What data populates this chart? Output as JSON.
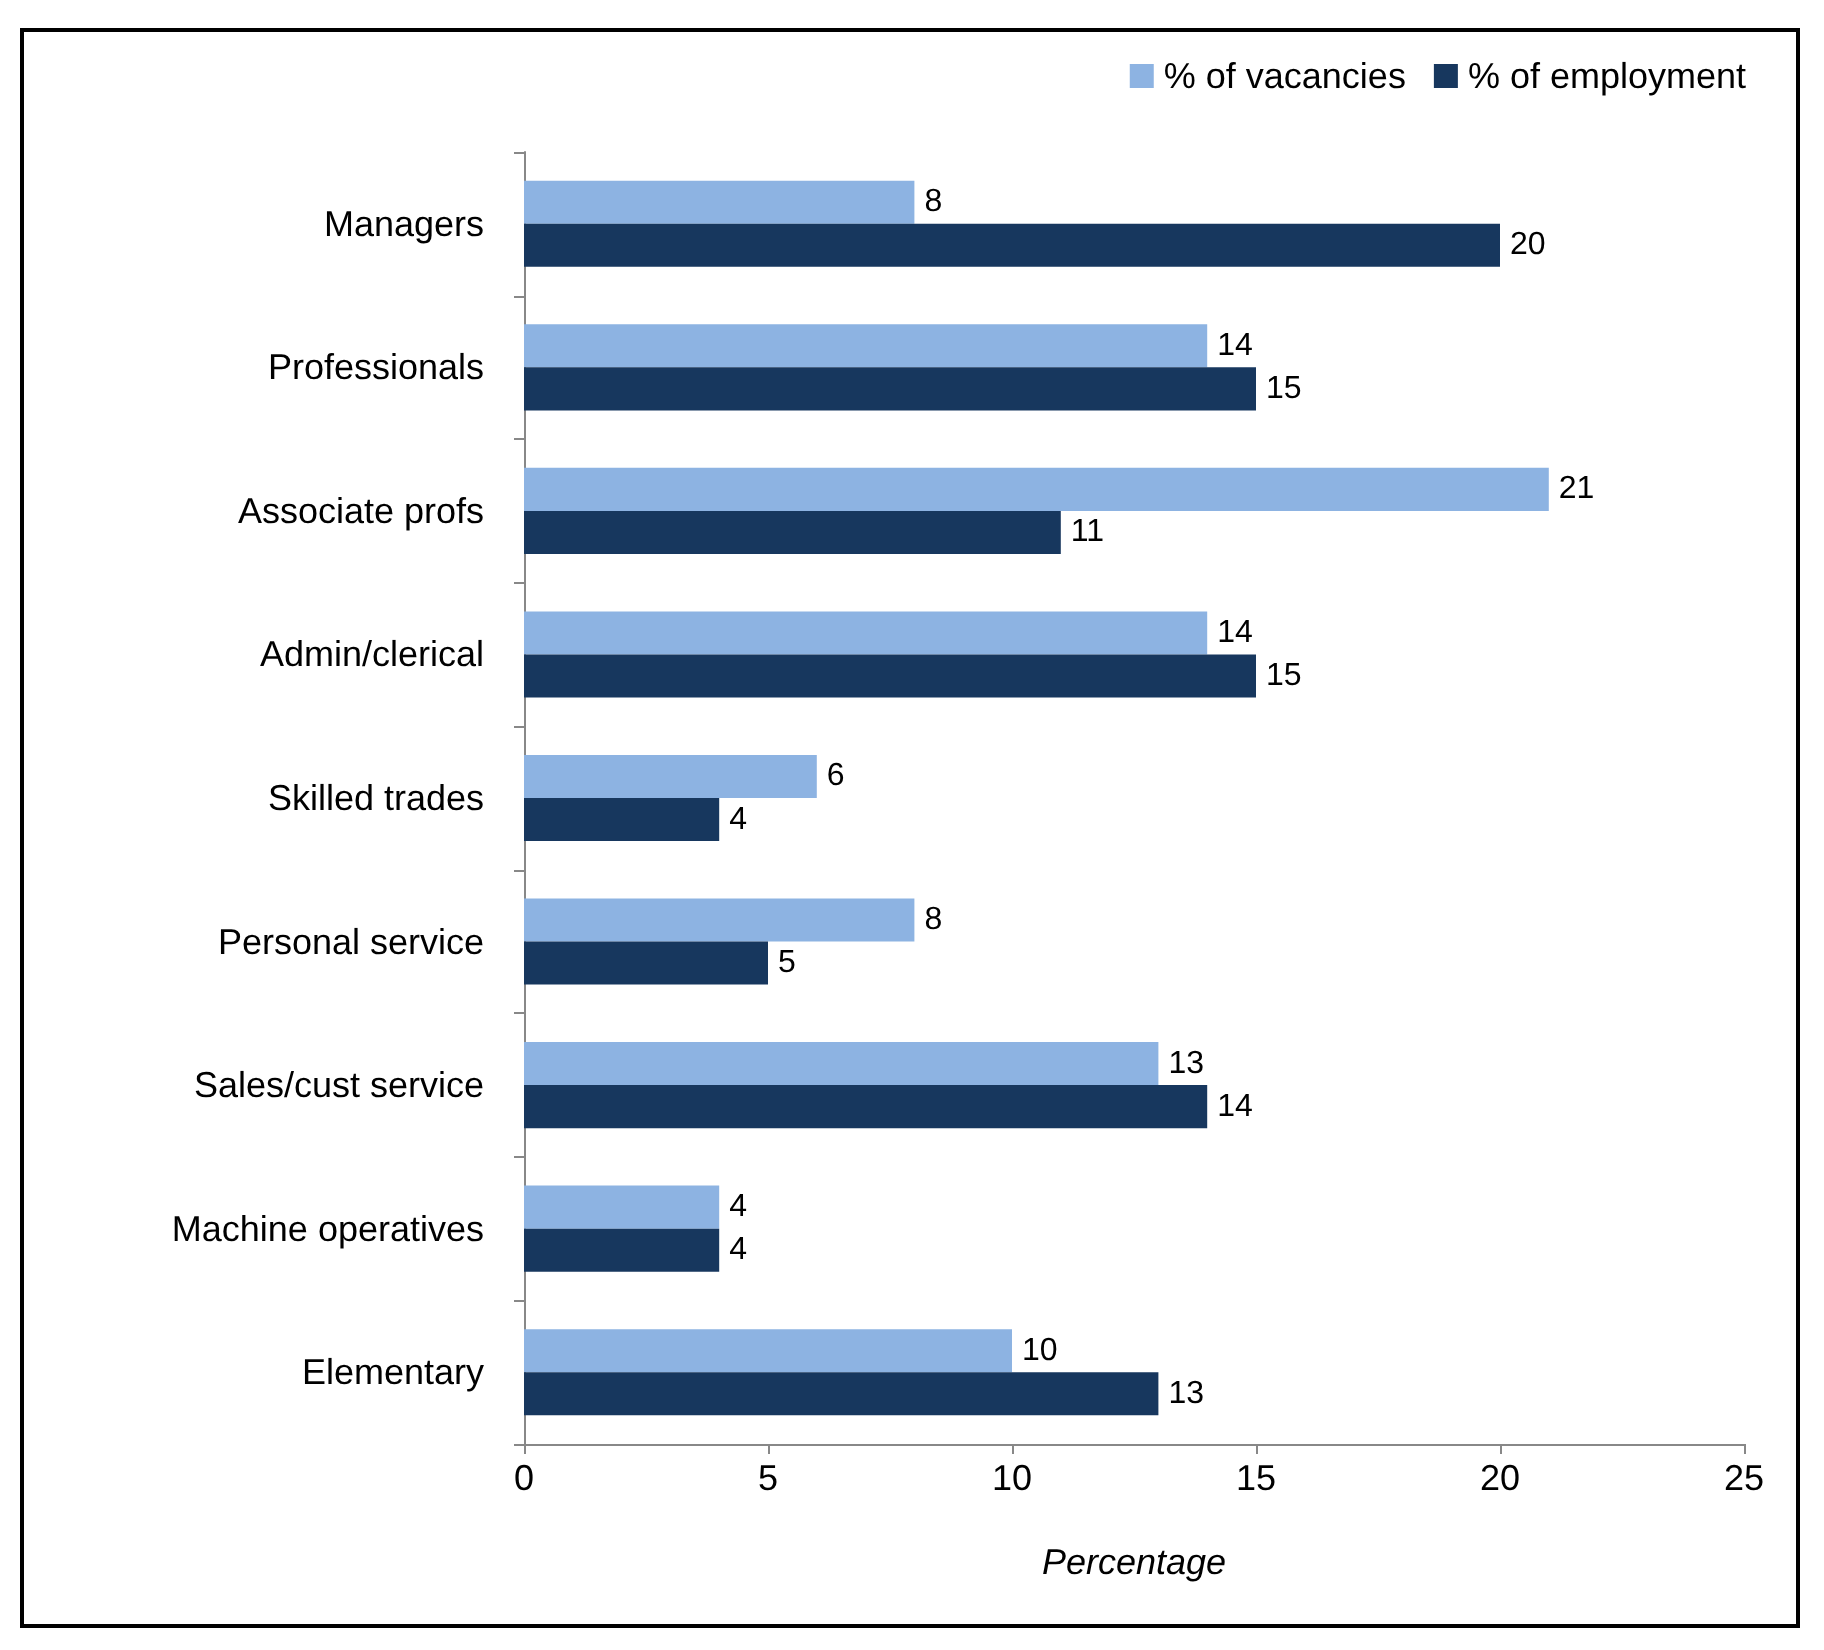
{
  "chart_data": {
    "type": "bar",
    "orientation": "horizontal",
    "xlabel": "Percentage",
    "categories": [
      "Managers",
      "Professionals",
      "Associate profs",
      "Admin/clerical",
      "Skilled trades",
      "Personal service",
      "Sales/cust service",
      "Machine operatives",
      "Elementary"
    ],
    "series": [
      {
        "name": "% of vacancies",
        "color": "#8db3e2",
        "values": [
          8,
          14,
          21,
          14,
          6,
          8,
          13,
          4,
          10
        ]
      },
      {
        "name": "% of employment",
        "color": "#17375e",
        "values": [
          20,
          15,
          11,
          15,
          4,
          5,
          14,
          4,
          13
        ]
      }
    ],
    "xlim": [
      0,
      25
    ],
    "xticks": [
      0,
      5,
      10,
      15,
      20,
      25
    ],
    "grid": false,
    "legend": "top right",
    "data_labels": true
  }
}
